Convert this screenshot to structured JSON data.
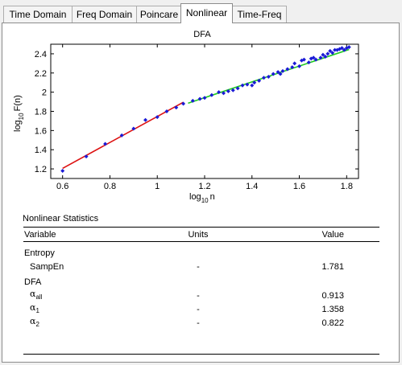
{
  "tabs": [
    {
      "label": "Time Domain",
      "active": false
    },
    {
      "label": "Freq Domain",
      "active": false
    },
    {
      "label": "Poincare",
      "active": false
    },
    {
      "label": "Nonlinear",
      "active": true
    },
    {
      "label": "Time-Freq",
      "active": false
    }
  ],
  "chart_data": {
    "type": "scatter",
    "title": "DFA",
    "xlabel_main": "log",
    "xlabel_sub": "10",
    "xlabel_tail": "n",
    "ylabel_main": "log",
    "ylabel_sub": "10",
    "ylabel_tail": "F(n)",
    "xlim": [
      0.55,
      1.85
    ],
    "ylim": [
      1.1,
      2.5
    ],
    "xticks": [
      0.6,
      0.8,
      1,
      1.2,
      1.4,
      1.6,
      1.8
    ],
    "xtick_labels": [
      "0.6",
      "0.8",
      "1",
      "1.2",
      "1.4",
      "1.6",
      "1.8"
    ],
    "yticks": [
      1.2,
      1.4,
      1.6,
      1.8,
      2,
      2.2,
      2.4
    ],
    "ytick_labels": [
      "1.2",
      "1.4",
      "1.6",
      "1.8",
      "2",
      "2.2",
      "2.4"
    ],
    "grid": false,
    "point_color": "#1b1bd6",
    "points": [
      [
        0.6,
        1.18
      ],
      [
        0.7,
        1.33
      ],
      [
        0.78,
        1.46
      ],
      [
        0.85,
        1.55
      ],
      [
        0.9,
        1.62
      ],
      [
        0.95,
        1.71
      ],
      [
        1.0,
        1.74
      ],
      [
        1.04,
        1.8
      ],
      [
        1.08,
        1.84
      ],
      [
        1.11,
        1.88
      ],
      [
        1.15,
        1.91
      ],
      [
        1.18,
        1.93
      ],
      [
        1.2,
        1.94
      ],
      [
        1.23,
        1.97
      ],
      [
        1.26,
        2.0
      ],
      [
        1.28,
        1.99
      ],
      [
        1.3,
        2.01
      ],
      [
        1.32,
        2.02
      ],
      [
        1.34,
        2.04
      ],
      [
        1.36,
        2.07
      ],
      [
        1.38,
        2.08
      ],
      [
        1.4,
        2.07
      ],
      [
        1.41,
        2.1
      ],
      [
        1.43,
        2.12
      ],
      [
        1.45,
        2.15
      ],
      [
        1.47,
        2.16
      ],
      [
        1.49,
        2.19
      ],
      [
        1.51,
        2.21
      ],
      [
        1.52,
        2.19
      ],
      [
        1.53,
        2.22
      ],
      [
        1.55,
        2.24
      ],
      [
        1.57,
        2.26
      ],
      [
        1.58,
        2.3
      ],
      [
        1.6,
        2.27
      ],
      [
        1.61,
        2.33
      ],
      [
        1.62,
        2.34
      ],
      [
        1.64,
        2.31
      ],
      [
        1.65,
        2.35
      ],
      [
        1.66,
        2.36
      ],
      [
        1.67,
        2.34
      ],
      [
        1.69,
        2.36
      ],
      [
        1.7,
        2.39
      ],
      [
        1.71,
        2.37
      ],
      [
        1.72,
        2.4
      ],
      [
        1.73,
        2.43
      ],
      [
        1.74,
        2.41
      ],
      [
        1.75,
        2.44
      ],
      [
        1.76,
        2.44
      ],
      [
        1.77,
        2.45
      ],
      [
        1.78,
        2.46
      ],
      [
        1.79,
        2.44
      ],
      [
        1.8,
        2.46
      ],
      [
        1.81,
        2.47
      ]
    ],
    "fit_lines": [
      {
        "name": "alpha1",
        "color": "#dd1111",
        "x": [
          0.6,
          1.11
        ],
        "y": [
          1.205,
          1.895
        ]
      },
      {
        "name": "alpha2",
        "color": "#22cc22",
        "x": [
          1.13,
          1.81
        ],
        "y": [
          1.885,
          2.445
        ]
      }
    ]
  },
  "stats": {
    "title": "Nonlinear Statistics",
    "headers": {
      "variable": "Variable",
      "units": "Units",
      "value": "Value"
    },
    "entropy_label": "Entropy",
    "sampen_label": "SampEn",
    "sampen_units": "-",
    "sampen_value": "1.781",
    "dfa_label": "DFA",
    "alpha_symbol": "α",
    "alpha_all_sub": "all",
    "alpha_all_units": "-",
    "alpha_all_value": "0.913",
    "alpha_1_sub": "1",
    "alpha_1_units": "-",
    "alpha_1_value": "1.358",
    "alpha_2_sub": "2",
    "alpha_2_units": "-",
    "alpha_2_value": "0.822"
  }
}
